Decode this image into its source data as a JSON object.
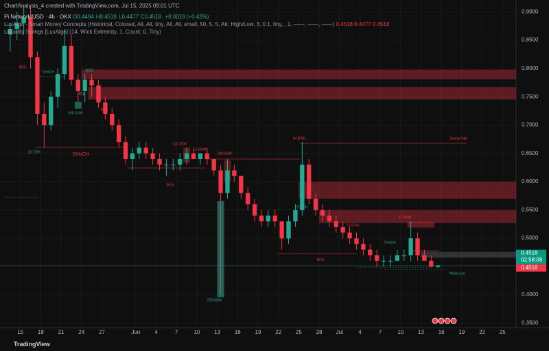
{
  "chart_data": {
    "type": "candlestick",
    "watermark": "ChartAnalysis_4 created with TradingView.com, Jul 15, 2025 09:01 UTC",
    "title": "Pi Network/USD · 4h · OKX",
    "ohlc_labels": [
      "O0.4494",
      "H0.4518",
      "L0.4477",
      "C0.4518"
    ],
    "change": "+0.0019 (+0.42%)",
    "indicators": [
      {
        "name": "LuxAlgo - Smart Money Concepts (Historical, Colored, All, All, tiny, All, All, small, 50, 5, 5, Atr, High/Low, 3, 0.1, tiny, , 1, ——, ——, ——)",
        "values": "0.4518  0.4477  0.4518"
      },
      {
        "name": "Liquidity Swings [LuxAlgo] (14, Wick Extremity, 1, Count, 0, Tiny)"
      }
    ],
    "brand": "TradingView",
    "x": [
      "2025-05-13",
      "2025-05-14",
      "2025-05-15",
      "2025-05-16",
      "2025-05-17",
      "2025-05-18",
      "2025-05-19",
      "2025-05-20",
      "2025-05-21",
      "2025-05-22",
      "2025-05-23",
      "2025-05-24",
      "2025-05-25",
      "2025-05-26",
      "2025-05-27",
      "2025-05-28",
      "2025-05-29",
      "2025-05-30",
      "2025-05-31",
      "2025-06-01",
      "2025-06-02",
      "2025-06-03",
      "2025-06-04",
      "2025-06-05",
      "2025-06-06",
      "2025-06-07",
      "2025-06-08",
      "2025-06-09",
      "2025-06-10",
      "2025-06-11",
      "2025-06-12",
      "2025-06-13",
      "2025-06-14",
      "2025-06-15",
      "2025-06-16",
      "2025-06-17",
      "2025-06-18",
      "2025-06-19",
      "2025-06-20",
      "2025-06-21",
      "2025-06-22",
      "2025-06-23",
      "2025-06-24",
      "2025-06-25",
      "2025-06-26",
      "2025-06-27",
      "2025-06-28",
      "2025-06-29",
      "2025-06-30",
      "2025-07-01",
      "2025-07-02",
      "2025-07-03",
      "2025-07-04",
      "2025-07-05",
      "2025-07-06",
      "2025-07-07",
      "2025-07-08",
      "2025-07-09",
      "2025-07-10",
      "2025-07-11",
      "2025-07-12",
      "2025-07-13",
      "2025-07-14",
      "2025-07-15"
    ],
    "open": [
      0.86,
      0.87,
      0.88,
      0.89,
      0.82,
      0.72,
      0.7,
      0.75,
      0.79,
      0.84,
      0.78,
      0.76,
      0.78,
      0.77,
      0.74,
      0.72,
      0.7,
      0.67,
      0.64,
      0.65,
      0.66,
      0.65,
      0.64,
      0.63,
      0.63,
      0.63,
      0.64,
      0.65,
      0.64,
      0.65,
      0.64,
      0.62,
      0.58,
      0.62,
      0.61,
      0.58,
      0.56,
      0.54,
      0.53,
      0.54,
      0.53,
      0.5,
      0.53,
      0.55,
      0.63,
      0.57,
      0.55,
      0.54,
      0.53,
      0.52,
      0.51,
      0.5,
      0.49,
      0.48,
      0.47,
      0.46,
      0.46,
      0.46,
      0.47,
      0.47,
      0.5,
      0.47,
      0.46,
      0.4494
    ],
    "high": [
      0.88,
      0.9,
      0.91,
      0.91,
      0.83,
      0.74,
      0.76,
      0.8,
      0.87,
      0.86,
      0.79,
      0.79,
      0.79,
      0.78,
      0.75,
      0.73,
      0.71,
      0.68,
      0.66,
      0.67,
      0.67,
      0.66,
      0.65,
      0.64,
      0.64,
      0.65,
      0.66,
      0.66,
      0.65,
      0.66,
      0.64,
      0.63,
      0.64,
      0.63,
      0.61,
      0.59,
      0.57,
      0.55,
      0.55,
      0.55,
      0.53,
      0.54,
      0.56,
      0.67,
      0.64,
      0.58,
      0.56,
      0.55,
      0.54,
      0.53,
      0.52,
      0.51,
      0.5,
      0.49,
      0.48,
      0.47,
      0.47,
      0.48,
      0.48,
      0.53,
      0.51,
      0.48,
      0.47,
      0.4518
    ],
    "low": [
      0.83,
      0.85,
      0.86,
      0.8,
      0.7,
      0.66,
      0.69,
      0.73,
      0.78,
      0.77,
      0.74,
      0.74,
      0.75,
      0.73,
      0.71,
      0.69,
      0.66,
      0.63,
      0.62,
      0.64,
      0.64,
      0.63,
      0.62,
      0.61,
      0.62,
      0.62,
      0.63,
      0.64,
      0.63,
      0.63,
      0.61,
      0.4,
      0.57,
      0.6,
      0.57,
      0.55,
      0.53,
      0.52,
      0.52,
      0.52,
      0.48,
      0.49,
      0.52,
      0.54,
      0.56,
      0.54,
      0.53,
      0.52,
      0.51,
      0.5,
      0.49,
      0.48,
      0.47,
      0.46,
      0.45,
      0.45,
      0.45,
      0.46,
      0.46,
      0.46,
      0.46,
      0.46,
      0.45,
      0.4477
    ],
    "close": [
      0.87,
      0.88,
      0.89,
      0.82,
      0.72,
      0.7,
      0.75,
      0.79,
      0.84,
      0.78,
      0.76,
      0.78,
      0.77,
      0.74,
      0.72,
      0.7,
      0.67,
      0.64,
      0.65,
      0.66,
      0.65,
      0.64,
      0.63,
      0.63,
      0.63,
      0.64,
      0.65,
      0.64,
      0.65,
      0.64,
      0.62,
      0.58,
      0.62,
      0.61,
      0.58,
      0.56,
      0.54,
      0.53,
      0.54,
      0.53,
      0.5,
      0.53,
      0.55,
      0.63,
      0.57,
      0.55,
      0.54,
      0.53,
      0.52,
      0.51,
      0.5,
      0.49,
      0.48,
      0.47,
      0.46,
      0.46,
      0.46,
      0.47,
      0.47,
      0.5,
      0.47,
      0.46,
      0.45,
      0.4518
    ],
    "up_color": "#22ab94",
    "down_color": "#f23645",
    "zones": [
      {
        "x0": "2025-05-24",
        "top": 0.798,
        "bottom": 0.781,
        "color": "#f23645"
      },
      {
        "x0": "2025-05-25",
        "top": 0.767,
        "bottom": 0.745,
        "color": "#f23645"
      },
      {
        "x0": "2025-06-25",
        "top": 0.6,
        "bottom": 0.57,
        "color": "#f23645"
      },
      {
        "x0": "2025-06-28",
        "top": 0.55,
        "bottom": 0.527,
        "color": "#f23645"
      },
      {
        "x0": "2025-07-11",
        "x1": "2025-07-15",
        "top": 0.529,
        "bottom": 0.519,
        "color": "#f23645"
      },
      {
        "x0": "2025-06-08",
        "x1": "2025-06-09",
        "top": 0.66,
        "bottom": 0.634,
        "color": "#f23645"
      },
      {
        "x0": "2025-06-14",
        "x1": "2025-06-15",
        "top": 0.638,
        "bottom": 0.6,
        "color": "#f23645"
      },
      {
        "x0": "2025-06-13",
        "x1": "2025-06-14",
        "top": 0.566,
        "bottom": 0.396,
        "color": "#22ab94"
      },
      {
        "x0": "2025-05-23",
        "x1": "2025-05-24",
        "top": 0.741,
        "bottom": 0.729,
        "color": "#22ab94"
      },
      {
        "x0": "2025-07-13",
        "top": 0.476,
        "bottom": 0.466,
        "color": "#787b86"
      }
    ],
    "annotations": [
      "BOS",
      "CHoCH",
      "BOS",
      "CHoCH",
      "EQL",
      "BOS",
      "122.201K",
      "1.356M",
      "BOS",
      "386.693K",
      "64.603K",
      "Strong High",
      "CHoCH",
      "BOS",
      "73.679K",
      "67.224K",
      "CHoCH",
      "Weak Low",
      "559.692K",
      "22.729K",
      "590.319K"
    ],
    "last_price": 0.4518,
    "last_price_label": "0.4518",
    "countdown": "02:58:08",
    "xlim": [
      "2025-05-12",
      "2025-07-27"
    ],
    "xticks": [
      {
        "value": "2025-05-15",
        "label": "15"
      },
      {
        "value": "2025-05-18",
        "label": "18"
      },
      {
        "value": "2025-05-21",
        "label": "21"
      },
      {
        "value": "2025-05-24",
        "label": "24"
      },
      {
        "value": "2025-05-27",
        "label": "27"
      },
      {
        "value": "2025-06-01",
        "label": "Jun"
      },
      {
        "value": "2025-06-04",
        "label": "4"
      },
      {
        "value": "2025-06-07",
        "label": "7"
      },
      {
        "value": "2025-06-10",
        "label": "10"
      },
      {
        "value": "2025-06-13",
        "label": "13"
      },
      {
        "value": "2025-06-16",
        "label": "16"
      },
      {
        "value": "2025-06-19",
        "label": "19"
      },
      {
        "value": "2025-06-22",
        "label": "22"
      },
      {
        "value": "2025-06-25",
        "label": "25"
      },
      {
        "value": "2025-06-28",
        "label": "28"
      },
      {
        "value": "2025-07-01",
        "label": "Jul"
      },
      {
        "value": "2025-07-04",
        "label": "4"
      },
      {
        "value": "2025-07-07",
        "label": "7"
      },
      {
        "value": "2025-07-10",
        "label": "10"
      },
      {
        "value": "2025-07-13",
        "label": "13"
      },
      {
        "value": "2025-07-16",
        "label": "16"
      },
      {
        "value": "2025-07-19",
        "label": "19"
      },
      {
        "value": "2025-07-22",
        "label": "22"
      },
      {
        "value": "2025-07-25",
        "label": "25"
      }
    ],
    "ylim": [
      0.342,
      0.921
    ],
    "yticks": [
      {
        "value": 0.35,
        "label": "0.3500"
      },
      {
        "value": 0.4,
        "label": "0.4000"
      },
      {
        "value": 0.45,
        "label": "0.4500"
      },
      {
        "value": 0.5,
        "label": "0.5000"
      },
      {
        "value": 0.55,
        "label": "0.5500"
      },
      {
        "value": 0.6,
        "label": "0.6000"
      },
      {
        "value": 0.65,
        "label": "0.6500"
      },
      {
        "value": 0.7,
        "label": "0.7000"
      },
      {
        "value": 0.75,
        "label": "0.7500"
      },
      {
        "value": 0.8,
        "label": "0.8000"
      },
      {
        "value": 0.85,
        "label": "0.8500"
      },
      {
        "value": 0.9,
        "label": "0.9000"
      }
    ],
    "grid": true
  }
}
